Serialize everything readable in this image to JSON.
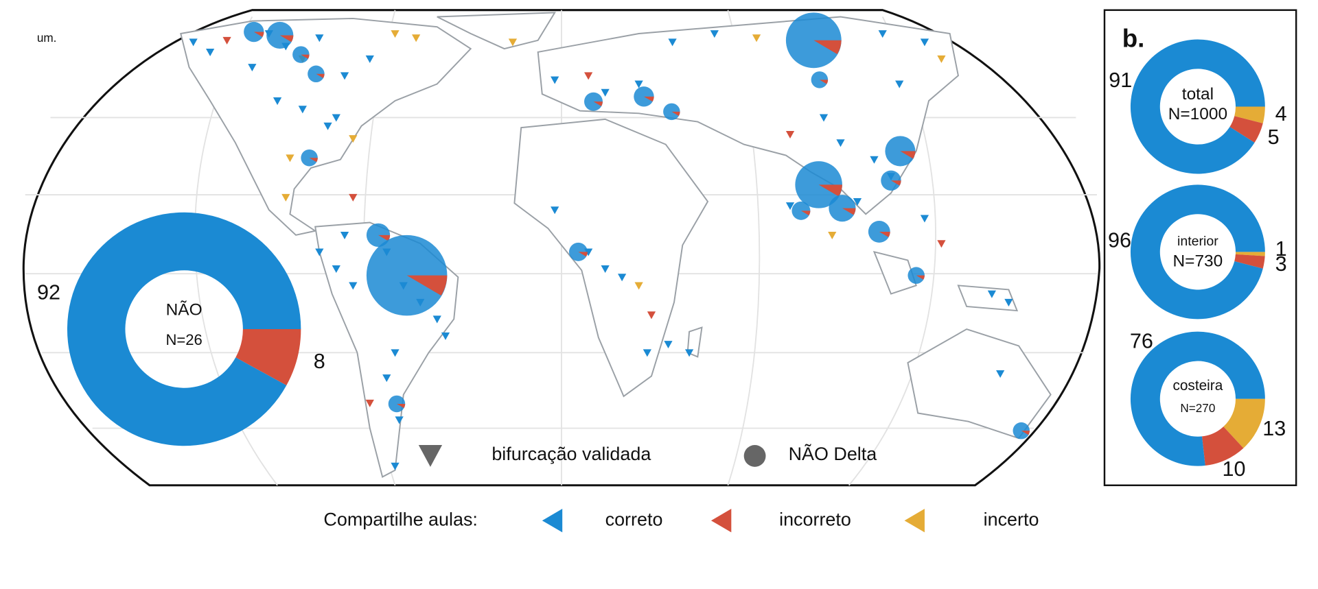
{
  "panel_a": {
    "label": "um.",
    "donut": {
      "title": "NÃO",
      "n_label": "N=26",
      "values": [
        92,
        8
      ]
    }
  },
  "panel_b": {
    "label": "b.",
    "donuts": [
      {
        "title": "total",
        "n_label": "N=1000",
        "values": [
          91,
          5,
          4
        ]
      },
      {
        "title": "interior",
        "n_label": "N=730",
        "values": [
          96,
          3,
          1
        ]
      },
      {
        "title": "costeira",
        "n_label": "N=270",
        "values": [
          76,
          10,
          13
        ]
      }
    ]
  },
  "legend": {
    "shape_items": [
      "bifurcação validada",
      "NÃO Delta"
    ],
    "color_title": "Compartilhe aulas:",
    "color_items": [
      {
        "name": "correto",
        "color": "#1b8ad3"
      },
      {
        "name": "incorreto",
        "color": "#d4503c"
      },
      {
        "name": "incerto",
        "color": "#e5ac36"
      }
    ]
  }
}
